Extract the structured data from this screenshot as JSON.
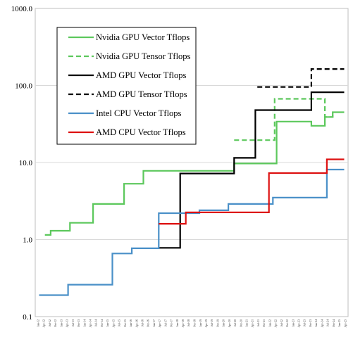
{
  "chart_data": {
    "type": "line",
    "yscale": "log",
    "ylim": [
      0.1,
      1000.0
    ],
    "y_tick_labels": [
      "1000.0",
      "100.0",
      "10.0",
      "1.0",
      "0.1"
    ],
    "x_tick_labels": [
      "Jan-12",
      "Apr-12",
      "Jul-12",
      "Oct-12",
      "Jan-13",
      "Apr-13",
      "Jul-13",
      "Oct-13",
      "Jan-14",
      "Apr-14",
      "Jul-14",
      "Oct-14",
      "Jan-15",
      "Apr-15",
      "Jul-15",
      "Oct-15",
      "Jan-16",
      "Apr-16",
      "Jul-16",
      "Oct-16",
      "Jan-17",
      "Apr-17",
      "Jul-17",
      "Oct-17",
      "Jan-18",
      "Apr-18",
      "Jul-18",
      "Oct-18",
      "Jan-19",
      "Apr-19",
      "Jul-19",
      "Oct-19",
      "Jan-20",
      "Apr-20",
      "Jul-20",
      "Oct-20",
      "Jan-21",
      "Apr-21",
      "Jul-21",
      "Oct-21",
      "Jan-22",
      "Apr-22",
      "Jul-22",
      "Oct-22",
      "Jan-23",
      "Apr-23",
      "Jul-23",
      "Oct-23",
      "Jan-24",
      "Apr-24",
      "Jul-24",
      "Oct-24",
      "Jan-25",
      "Apr-25"
    ],
    "xlim": [
      "2011-11-01",
      "2025-05-01"
    ],
    "grid": "horizontal at decades",
    "legend_position": "top-left",
    "series": [
      {
        "name": "Nvidia GPU Vector Tflops",
        "color": "#5CC85C",
        "dash": "solid",
        "points": [
          [
            "2012-04-01",
            1.15
          ],
          [
            "2012-07-01",
            1.3
          ],
          [
            "2013-05-01",
            1.65
          ],
          [
            "2014-05-01",
            2.9
          ],
          [
            "2015-09-01",
            5.3
          ],
          [
            "2016-07-01",
            7.8
          ],
          [
            "2018-12-01",
            7.8
          ],
          [
            "2020-06-01",
            9.7
          ],
          [
            "2022-04-01",
            34
          ],
          [
            "2023-10-01",
            30
          ],
          [
            "2024-05-01",
            39
          ],
          [
            "2024-09-01",
            45
          ],
          [
            "2025-03-01",
            45
          ]
        ]
      },
      {
        "name": "Nvidia GPU Tensor Tflops",
        "color": "#5CC85C",
        "dash": "dashed",
        "points": [
          [
            "2020-06-01",
            19.5
          ],
          [
            "2022-03-01",
            67
          ],
          [
            "2023-10-01",
            67
          ],
          [
            "2024-05-01",
            39
          ],
          [
            "2024-09-01",
            45
          ]
        ]
      },
      {
        "name": "AMD GPU Vector Tflops",
        "color": "#000000",
        "dash": "solid",
        "points": [
          [
            "2017-03-01",
            0.78
          ],
          [
            "2018-02-01",
            7.2
          ],
          [
            "2020-06-01",
            11.5
          ],
          [
            "2021-05-01",
            47.9
          ],
          [
            "2023-10-01",
            81.7
          ],
          [
            "2025-03-01",
            81.7
          ]
        ]
      },
      {
        "name": "AMD GPU Tensor Tflops",
        "color": "#000000",
        "dash": "dashed",
        "points": [
          [
            "2021-06-01",
            95.7
          ],
          [
            "2023-10-01",
            163.4
          ],
          [
            "2025-03-01",
            163.4
          ]
        ]
      },
      {
        "name": "Intel CPU Vector Tflops",
        "color": "#4A90C8",
        "dash": "solid",
        "points": [
          [
            "2012-01-01",
            0.19
          ],
          [
            "2013-04-01",
            0.26
          ],
          [
            "2015-03-01",
            0.66
          ],
          [
            "2016-01-01",
            0.77
          ],
          [
            "2017-03-01",
            2.2
          ],
          [
            "2018-12-01",
            2.4
          ],
          [
            "2020-03-01",
            2.9
          ],
          [
            "2022-02-01",
            3.5
          ],
          [
            "2024-06-01",
            8.1
          ],
          [
            "2025-03-01",
            8.1
          ]
        ]
      },
      {
        "name": "AMD CPU Vector Tflops",
        "color": "#DD1111",
        "dash": "solid",
        "points": [
          [
            "2017-03-01",
            1.6
          ],
          [
            "2018-05-01",
            2.25
          ],
          [
            "2021-12-01",
            7.3
          ],
          [
            "2024-06-01",
            11
          ],
          [
            "2025-03-01",
            11
          ]
        ]
      }
    ]
  }
}
